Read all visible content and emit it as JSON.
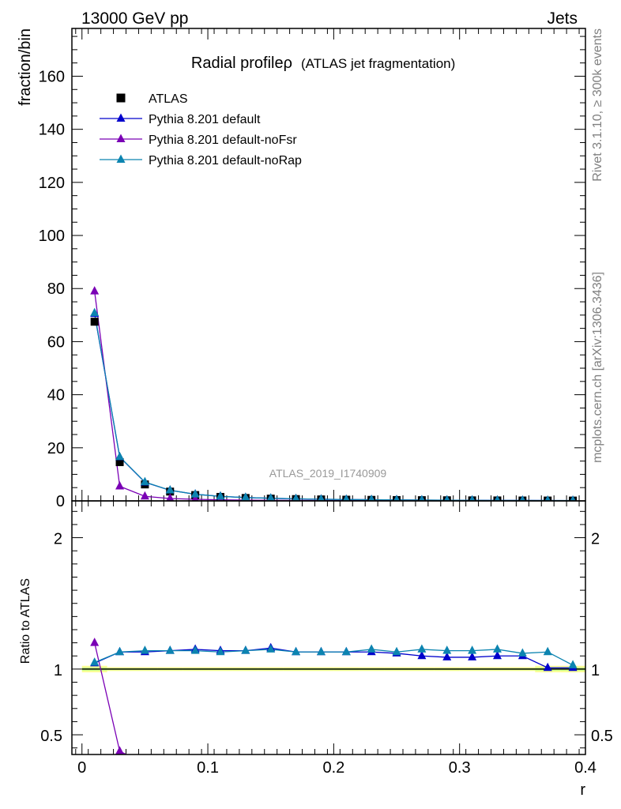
{
  "header": {
    "left": "13000 GeV pp",
    "right": "Jets"
  },
  "side_labels": {
    "top": "Rivet 3.1.10, ≥ 300k events",
    "bottom": "mcplots.cern.ch [arXiv:1306.3436]"
  },
  "chart_data": {
    "type": "line",
    "title": "Radial profileρ",
    "subtitle": "(ATLAS jet fragmentation)",
    "watermark": "ATLAS_2019_I1740909",
    "xlabel": "r",
    "ylabel": "fraction/bin",
    "ratio_ylabel": "Ratio to ATLAS",
    "xlim": [
      -0.008,
      0.4
    ],
    "ylim": [
      0,
      178
    ],
    "ratio_ylim": [
      0.35,
      2.28
    ],
    "x_ticks": [
      "0",
      "0.1",
      "0.2",
      "0.3",
      "0.4"
    ],
    "y_ticks": [
      "0",
      "20",
      "40",
      "60",
      "80",
      "100",
      "120",
      "140",
      "160"
    ],
    "ratio_y_ticks": [
      "0.5",
      "1",
      "2"
    ],
    "legend_position": "top-left",
    "x": [
      0.01,
      0.03,
      0.05,
      0.07,
      0.09,
      0.11,
      0.13,
      0.15,
      0.17,
      0.19,
      0.21,
      0.23,
      0.25,
      0.27,
      0.29,
      0.31,
      0.33,
      0.35,
      0.37,
      0.39
    ],
    "series": [
      {
        "name": "ATLAS",
        "color": "#000000",
        "marker": "square",
        "values": [
          67.5,
          14.6,
          6.2,
          3.5,
          2.2,
          1.5,
          1.1,
          0.85,
          0.68,
          0.55,
          0.45,
          0.38,
          0.32,
          0.27,
          0.23,
          0.2,
          0.17,
          0.15,
          0.13,
          0.12
        ],
        "ratio": [
          1,
          1,
          1,
          1,
          1,
          1,
          1,
          1,
          1,
          1,
          1,
          1,
          1,
          1,
          1,
          1,
          1,
          1,
          1,
          1
        ]
      },
      {
        "name": "Pythia 8.201 default",
        "color": "#0000cc",
        "marker": "triangle",
        "values": [
          70.5,
          16.5,
          7.0,
          4.0,
          2.5,
          1.7,
          1.25,
          0.98,
          0.77,
          0.62,
          0.51,
          0.43,
          0.36,
          0.3,
          0.25,
          0.22,
          0.19,
          0.17,
          0.13,
          0.12
        ],
        "ratio": [
          1.045,
          1.13,
          1.13,
          1.14,
          1.15,
          1.14,
          1.14,
          1.16,
          1.13,
          1.13,
          1.13,
          1.13,
          1.12,
          1.1,
          1.09,
          1.09,
          1.1,
          1.1,
          1.01,
          1.01
        ]
      },
      {
        "name": "Pythia 8.201 default-noFsr",
        "color": "#7a00b5",
        "marker": "triangle",
        "values": [
          79.0,
          5.5,
          1.7,
          0.9,
          0.6,
          0.4,
          0.3,
          0.23,
          0.18,
          0.14,
          0.11,
          0.09,
          0.08,
          0.06,
          0.05,
          0.045,
          0.04,
          0.035,
          0.03,
          0.025
        ],
        "ratio": [
          1.2,
          0.375,
          0.28,
          0.26,
          0.27,
          0.27,
          0.27,
          0.27,
          0.26,
          0.25,
          0.24,
          0.24,
          0.25,
          0.22,
          0.22,
          0.23,
          0.24,
          0.23,
          0.23,
          0.21
        ]
      },
      {
        "name": "Pythia 8.201 default-noRap",
        "color": "#0c84b0",
        "marker": "triangle",
        "values": [
          70.8,
          16.6,
          7.1,
          4.0,
          2.5,
          1.7,
          1.26,
          0.99,
          0.77,
          0.62,
          0.51,
          0.44,
          0.36,
          0.31,
          0.26,
          0.22,
          0.19,
          0.17,
          0.15,
          0.125
        ],
        "ratio": [
          1.05,
          1.13,
          1.14,
          1.14,
          1.14,
          1.13,
          1.14,
          1.15,
          1.13,
          1.13,
          1.13,
          1.15,
          1.13,
          1.15,
          1.14,
          1.14,
          1.15,
          1.12,
          1.13,
          1.03
        ]
      }
    ],
    "ratio_band_colors": [
      "#ffff99",
      "#ccff88"
    ]
  }
}
